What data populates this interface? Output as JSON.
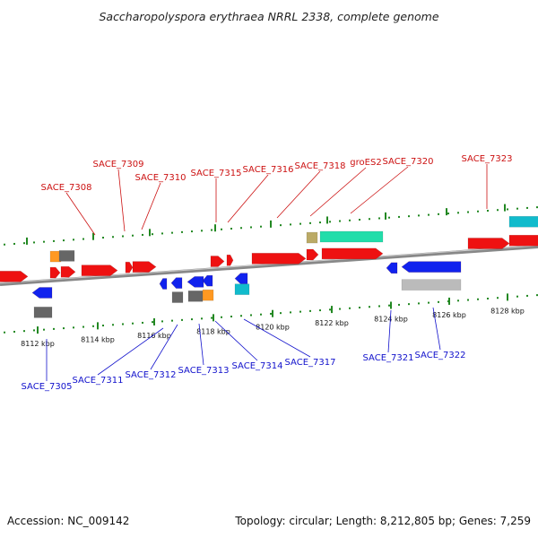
{
  "title": "Saccharopolyspora erythraea NRRL 2338, complete genome",
  "footer": {
    "accession": "Accession: NC_009142",
    "summary": "Topology: circular; Length: 8,212,805 bp; Genes: 7,259"
  },
  "colors": {
    "forward_strand": "#ee1111",
    "reverse_strand": "#1122ee",
    "backbone": "#888888",
    "tick": "#228822",
    "label_top": "#cc1111",
    "label_bottom": "#1111cc",
    "orange": "#ff9922",
    "gray": "#666666",
    "light_gray": "#bbbbbb",
    "cyan": "#11bbcc",
    "mint": "#22ddaa",
    "khaki": "#bbaa66"
  },
  "scale": {
    "unit": "kbp",
    "major_ticks": [
      {
        "label": "8112 kbp"
      },
      {
        "label": "8114 kbp"
      },
      {
        "label": "8116 kbp"
      },
      {
        "label": "8118 kbp"
      },
      {
        "label": "8120 kbp"
      },
      {
        "label": "8122 kbp"
      },
      {
        "label": "8124 kbp"
      },
      {
        "label": "8126 kbp"
      },
      {
        "label": "8128 kbp"
      }
    ]
  },
  "top_labels": [
    {
      "text": "SACE_7308"
    },
    {
      "text": "SACE_7309"
    },
    {
      "text": "SACE_7310"
    },
    {
      "text": "SACE_7315"
    },
    {
      "text": "SACE_7316"
    },
    {
      "text": "SACE_7318"
    },
    {
      "text": "groES2"
    },
    {
      "text": "SACE_7320"
    },
    {
      "text": "SACE_7323"
    }
  ],
  "bottom_labels": [
    {
      "text": "SACE_7305"
    },
    {
      "text": "SACE_7311"
    },
    {
      "text": "SACE_7312"
    },
    {
      "text": "SACE_7313"
    },
    {
      "text": "SACE_7314"
    },
    {
      "text": "SACE_7317"
    },
    {
      "text": "SACE_7321"
    },
    {
      "text": "SACE_7322"
    }
  ]
}
